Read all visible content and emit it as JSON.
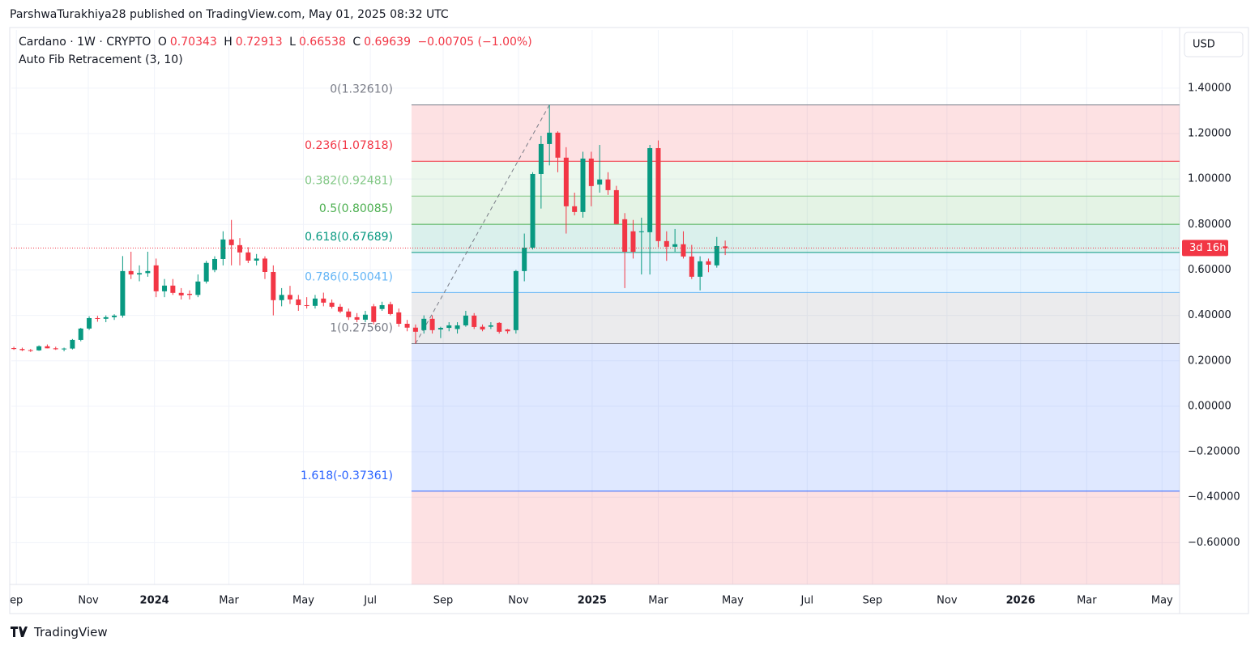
{
  "header": {
    "publisher": "ParshwaTurakhiya28 published on TradingView.com, May 01, 2025 08:32 UTC",
    "symbol": "Cardano · 1W · CRYPTO",
    "open_label": "O",
    "high_label": "H",
    "low_label": "L",
    "close_label": "C",
    "change": "−0.00705 (−1.00%)",
    "indicator": "Auto Fib Retracement (3, 10)",
    "currency": "USD",
    "countdown": "3d 16h"
  },
  "chart_data": {
    "type": "candlestick",
    "x": [
      0,
      1,
      2,
      3,
      4,
      5,
      6,
      7,
      8,
      9,
      10,
      11,
      12,
      13,
      14,
      15,
      16,
      17,
      18,
      19,
      20,
      21,
      22,
      23,
      24,
      25,
      26,
      27,
      28,
      29,
      30,
      31,
      32,
      33,
      34,
      35,
      36,
      37,
      38,
      39,
      40,
      41,
      42,
      43,
      44,
      45,
      46,
      47,
      48,
      49,
      50,
      51,
      52,
      53,
      54,
      55,
      56,
      57,
      58,
      59,
      60,
      61,
      62,
      63,
      64,
      65,
      66,
      67,
      68,
      69,
      70,
      71,
      72,
      73,
      74,
      75,
      76,
      77,
      78,
      79,
      80,
      81,
      82,
      83,
      84,
      85
    ],
    "open": [
      0.256,
      0.252,
      0.247,
      0.246,
      0.264,
      0.255,
      0.251,
      0.254,
      0.292,
      0.342,
      0.388,
      0.385,
      0.392,
      0.399,
      0.595,
      0.58,
      0.586,
      0.62,
      0.506,
      0.531,
      0.499,
      0.495,
      0.49,
      0.549,
      0.6,
      0.648,
      0.734,
      0.709,
      0.677,
      0.641,
      0.65,
      0.591,
      0.467,
      0.49,
      0.47,
      0.445,
      0.442,
      0.474,
      0.456,
      0.438,
      0.417,
      0.392,
      0.381,
      0.44,
      0.428,
      0.449,
      0.413,
      0.363,
      0.346,
      0.335,
      0.385,
      0.338,
      0.345,
      0.34,
      0.356,
      0.399,
      0.35,
      0.35,
      0.367,
      0.338,
      0.335,
      0.595,
      0.698,
      1.022,
      1.154,
      1.204,
      1.094,
      0.88,
      0.855,
      1.09,
      0.976,
      0.998,
      0.951,
      0.823,
      0.77,
      0.766,
      0.766,
      1.136,
      0.727,
      0.702,
      0.713,
      0.659,
      0.57,
      0.638,
      0.62,
      0.70343
    ],
    "high": [
      0.262,
      0.258,
      0.252,
      0.268,
      0.272,
      0.262,
      0.258,
      0.296,
      0.345,
      0.396,
      0.398,
      0.4,
      0.405,
      0.661,
      0.68,
      0.62,
      0.68,
      0.65,
      0.56,
      0.56,
      0.52,
      0.51,
      0.58,
      0.64,
      0.66,
      0.77,
      0.82,
      0.74,
      0.7,
      0.67,
      0.66,
      0.62,
      0.52,
      0.53,
      0.49,
      0.48,
      0.49,
      0.5,
      0.47,
      0.45,
      0.43,
      0.41,
      0.42,
      0.45,
      0.46,
      0.46,
      0.43,
      0.38,
      0.36,
      0.4,
      0.4,
      0.35,
      0.37,
      0.37,
      0.42,
      0.41,
      0.36,
      0.37,
      0.37,
      0.34,
      0.6,
      0.76,
      1.03,
      1.19,
      1.3261,
      1.21,
      1.14,
      0.94,
      1.12,
      1.12,
      1.15,
      1.03,
      0.97,
      0.85,
      0.82,
      0.83,
      1.15,
      1.17,
      0.77,
      0.78,
      0.77,
      0.71,
      0.66,
      0.65,
      0.745,
      0.72913
    ],
    "low": [
      0.248,
      0.243,
      0.239,
      0.244,
      0.255,
      0.248,
      0.242,
      0.25,
      0.286,
      0.336,
      0.372,
      0.37,
      0.38,
      0.39,
      0.56,
      0.55,
      0.57,
      0.48,
      0.48,
      0.49,
      0.47,
      0.47,
      0.48,
      0.54,
      0.59,
      0.62,
      0.62,
      0.62,
      0.63,
      0.62,
      0.56,
      0.4,
      0.44,
      0.45,
      0.42,
      0.43,
      0.43,
      0.44,
      0.43,
      0.41,
      0.38,
      0.37,
      0.37,
      0.36,
      0.42,
      0.4,
      0.35,
      0.33,
      0.2756,
      0.32,
      0.32,
      0.3,
      0.33,
      0.32,
      0.35,
      0.34,
      0.33,
      0.34,
      0.32,
      0.32,
      0.32,
      0.55,
      0.69,
      0.87,
      1.06,
      1.03,
      0.76,
      0.84,
      0.83,
      0.88,
      0.94,
      0.93,
      0.8,
      0.52,
      0.65,
      0.58,
      0.58,
      0.7,
      0.64,
      0.68,
      0.65,
      0.56,
      0.51,
      0.59,
      0.61,
      0.66538
    ],
    "close": [
      0.252,
      0.247,
      0.246,
      0.264,
      0.255,
      0.251,
      0.254,
      0.292,
      0.342,
      0.388,
      0.385,
      0.392,
      0.399,
      0.595,
      0.58,
      0.586,
      0.595,
      0.506,
      0.531,
      0.499,
      0.488,
      0.49,
      0.549,
      0.631,
      0.648,
      0.734,
      0.709,
      0.677,
      0.641,
      0.65,
      0.591,
      0.467,
      0.49,
      0.47,
      0.445,
      0.442,
      0.474,
      0.456,
      0.438,
      0.417,
      0.392,
      0.381,
      0.403,
      0.371,
      0.445,
      0.406,
      0.363,
      0.346,
      0.328,
      0.385,
      0.335,
      0.345,
      0.356,
      0.356,
      0.399,
      0.349,
      0.338,
      0.356,
      0.328,
      0.33,
      0.595,
      0.698,
      1.022,
      1.154,
      1.204,
      1.094,
      0.88,
      0.855,
      1.09,
      0.969,
      0.998,
      0.951,
      0.802,
      0.68,
      0.68,
      0.77,
      1.136,
      0.727,
      0.702,
      0.713,
      0.659,
      0.57,
      0.638,
      0.623,
      0.705,
      0.69639
    ],
    "up_color": "#089981",
    "down_color": "#f23645",
    "xlim": [
      -0.3,
      139.3
    ],
    "xticks": [
      {
        "value": 0.3,
        "label": "ep"
      },
      {
        "value": 8.9,
        "label": "Nov"
      },
      {
        "value": 16.8,
        "label": "2024"
      },
      {
        "value": 25.7,
        "label": "Mar"
      },
      {
        "value": 34.6,
        "label": "May"
      },
      {
        "value": 42.6,
        "label": "Jul"
      },
      {
        "value": 51.3,
        "label": "Sep"
      },
      {
        "value": 60.3,
        "label": "Nov"
      },
      {
        "value": 69.1,
        "label": "2025"
      },
      {
        "value": 77.0,
        "label": "Mar"
      },
      {
        "value": 85.9,
        "label": "May"
      },
      {
        "value": 94.8,
        "label": "Jul"
      },
      {
        "value": 102.6,
        "label": "Sep"
      },
      {
        "value": 111.5,
        "label": "Nov"
      },
      {
        "value": 120.3,
        "label": "2026"
      },
      {
        "value": 128.2,
        "label": "Mar"
      },
      {
        "value": 137.2,
        "label": "May"
      }
    ],
    "ylim": [
      -0.784,
      1.656
    ],
    "yticks": [
      {
        "value": 1.4,
        "label": "1.40000"
      },
      {
        "value": 1.2,
        "label": "1.20000"
      },
      {
        "value": 1.0,
        "label": "1.00000"
      },
      {
        "value": 0.8,
        "label": "0.80000"
      },
      {
        "value": 0.6,
        "label": "0.60000"
      },
      {
        "value": 0.4,
        "label": "0.40000"
      },
      {
        "value": 0.2,
        "label": "0.20000"
      },
      {
        "value": 0,
        "label": "0.00000"
      },
      {
        "value": -0.2,
        "label": "−0.20000"
      },
      {
        "value": -0.4,
        "label": "−0.40000"
      },
      {
        "value": -0.6,
        "label": "−0.60000"
      }
    ],
    "grid": true,
    "fib": {
      "levels": [
        {
          "label": "0(1.32610)",
          "value": 1.3261,
          "color": "#787b86"
        },
        {
          "label": "0.236(1.07818)",
          "value": 1.07818,
          "color": "#f23645"
        },
        {
          "label": "0.382(0.92481)",
          "value": 0.92481,
          "color": "#81c784"
        },
        {
          "label": "0.5(0.80085)",
          "value": 0.80085,
          "color": "#4caf50"
        },
        {
          "label": "0.618(0.67689)",
          "value": 0.67689,
          "color": "#089981"
        },
        {
          "label": "0.786(0.50041)",
          "value": 0.50041,
          "color": "#64b5f6"
        },
        {
          "label": "1(0.27560)",
          "value": 0.2756,
          "color": "#787b86"
        },
        {
          "label": "1.618(-0.37361)",
          "value": -0.37361,
          "color": "#2962ff"
        }
      ]
    }
  },
  "footer": {
    "brand": "TradingView"
  }
}
